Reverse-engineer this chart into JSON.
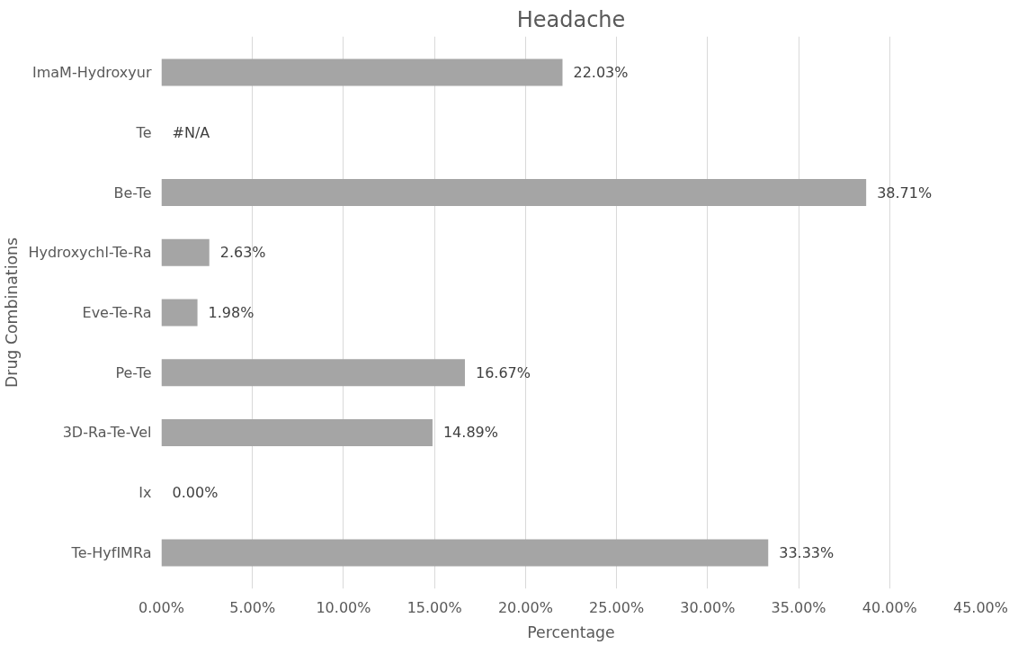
{
  "chart_data": {
    "type": "bar",
    "orientation": "horizontal",
    "title": "Headache",
    "xlabel": "Percentage",
    "ylabel": "Drug Combinations",
    "categories": [
      "ImaM-Hydroxyur",
      "Te",
      "Be-Te",
      "Hydroxychl-Te-Ra",
      "Eve-Te-Ra",
      "Pe-Te",
      "3D-Ra-Te-Vel",
      "Ix",
      "Te-HyfIMRa"
    ],
    "values": [
      22.03,
      null,
      38.71,
      2.63,
      1.98,
      16.67,
      14.89,
      0.0,
      33.33
    ],
    "value_labels": [
      "22.03%",
      "#N/A",
      "38.71%",
      "2.63%",
      "1.98%",
      "16.67%",
      "14.89%",
      "0.00%",
      "33.33%"
    ],
    "color": "#a5a5a5",
    "xlim": [
      0,
      45
    ],
    "xticks": [
      {
        "value": 0,
        "label": "0.00%"
      },
      {
        "value": 5,
        "label": "5.00%"
      },
      {
        "value": 10,
        "label": "10.00%"
      },
      {
        "value": 15,
        "label": "15.00%"
      },
      {
        "value": 20,
        "label": "20.00%"
      },
      {
        "value": 25,
        "label": "25.00%"
      },
      {
        "value": 30,
        "label": "30.00%"
      },
      {
        "value": 35,
        "label": "35.00%"
      },
      {
        "value": 40,
        "label": "40.00%"
      },
      {
        "value": 45,
        "label": "45.00%"
      }
    ],
    "grid": "x"
  }
}
